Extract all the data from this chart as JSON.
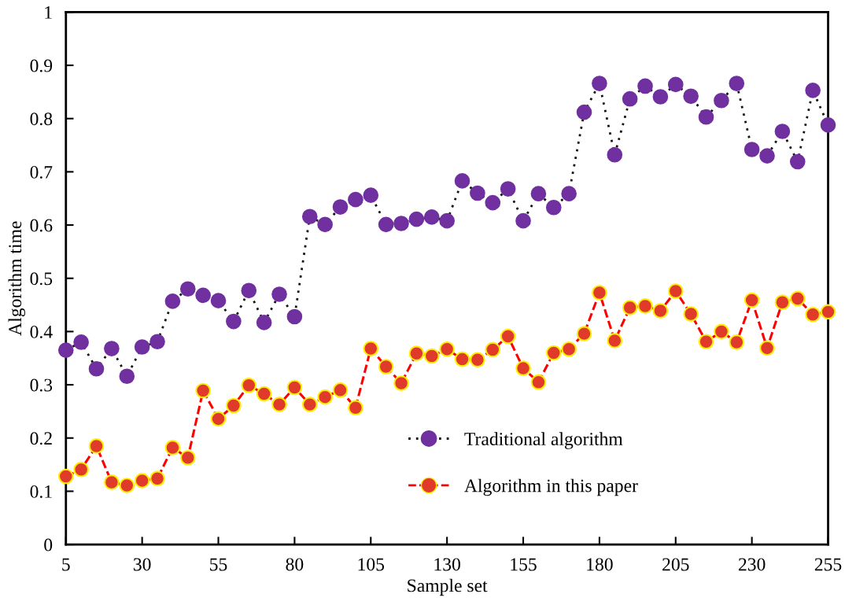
{
  "chart_data": {
    "type": "line",
    "xlabel": "Sample set",
    "ylabel": "Algorithm time",
    "x": [
      5,
      10,
      15,
      20,
      25,
      30,
      35,
      40,
      45,
      50,
      55,
      60,
      65,
      70,
      75,
      80,
      85,
      90,
      95,
      100,
      105,
      110,
      115,
      120,
      125,
      130,
      135,
      140,
      145,
      150,
      155,
      160,
      165,
      170,
      175,
      180,
      185,
      190,
      195,
      200,
      205,
      210,
      215,
      220,
      225,
      230,
      235,
      240,
      245,
      250,
      255
    ],
    "series": [
      {
        "name": "Traditional algorithm",
        "color": "#7030a0",
        "line_style": "dotted",
        "marker": "circle",
        "values": [
          0.365,
          0.38,
          0.33,
          0.368,
          0.316,
          0.371,
          0.381,
          0.457,
          0.48,
          0.468,
          0.458,
          0.419,
          0.477,
          0.417,
          0.47,
          0.428,
          0.616,
          0.601,
          0.634,
          0.648,
          0.656,
          0.601,
          0.603,
          0.611,
          0.615,
          0.608,
          0.683,
          0.66,
          0.642,
          0.668,
          0.608,
          0.659,
          0.633,
          0.659,
          0.812,
          0.866,
          0.732,
          0.837,
          0.861,
          0.841,
          0.864,
          0.842,
          0.803,
          0.834,
          0.866,
          0.742,
          0.73,
          0.776,
          0.719,
          0.853,
          0.788
        ]
      },
      {
        "name": "Algorithm in this paper",
        "color": "#e03a2a",
        "line_style": "dashed",
        "marker": "circle",
        "values": [
          0.128,
          0.141,
          0.185,
          0.117,
          0.111,
          0.12,
          0.124,
          0.182,
          0.163,
          0.289,
          0.236,
          0.261,
          0.299,
          0.283,
          0.263,
          0.295,
          0.263,
          0.277,
          0.29,
          0.257,
          0.368,
          0.334,
          0.303,
          0.359,
          0.354,
          0.367,
          0.348,
          0.347,
          0.366,
          0.391,
          0.331,
          0.305,
          0.36,
          0.367,
          0.396,
          0.473,
          0.383,
          0.445,
          0.448,
          0.439,
          0.476,
          0.433,
          0.381,
          0.4,
          0.38,
          0.459,
          0.369,
          0.455,
          0.462,
          0.432,
          0.437
        ]
      }
    ],
    "xlim": [
      5,
      255
    ],
    "xticks": [
      5,
      30,
      55,
      80,
      105,
      130,
      155,
      180,
      205,
      230,
      255
    ],
    "ylim": [
      0,
      1
    ],
    "yticks": [
      0,
      0.1,
      0.2,
      0.3,
      0.4,
      0.5,
      0.6,
      0.7,
      0.8,
      0.9,
      1
    ],
    "grid": false,
    "legend": "bottom"
  }
}
